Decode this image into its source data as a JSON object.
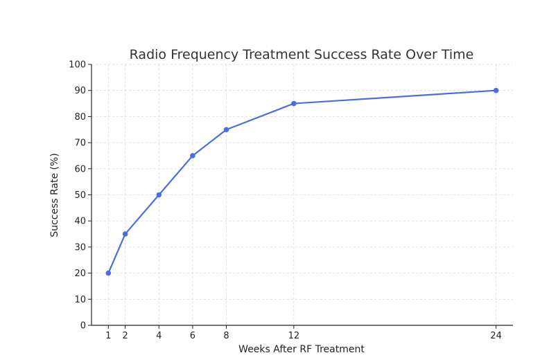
{
  "chart_data": {
    "type": "line",
    "title": "Radio Frequency Treatment Success Rate Over Time",
    "xlabel": "Weeks After RF Treatment",
    "ylabel": "Success Rate (%)",
    "x": [
      1,
      2,
      4,
      6,
      8,
      12,
      24
    ],
    "series": [
      {
        "values": [
          20,
          35,
          50,
          65,
          75,
          85,
          90
        ]
      }
    ],
    "xticks": [
      "1",
      "2",
      "4",
      "6",
      "8",
      "12",
      "24"
    ],
    "yticks": [
      "0",
      "10",
      "20",
      "30",
      "40",
      "50",
      "60",
      "70",
      "80",
      "90",
      "100"
    ],
    "ylim": [
      0,
      100
    ],
    "xlim": [
      0,
      25
    ],
    "grid": true,
    "line_color": "#4a6fdc",
    "marker": "circle"
  }
}
